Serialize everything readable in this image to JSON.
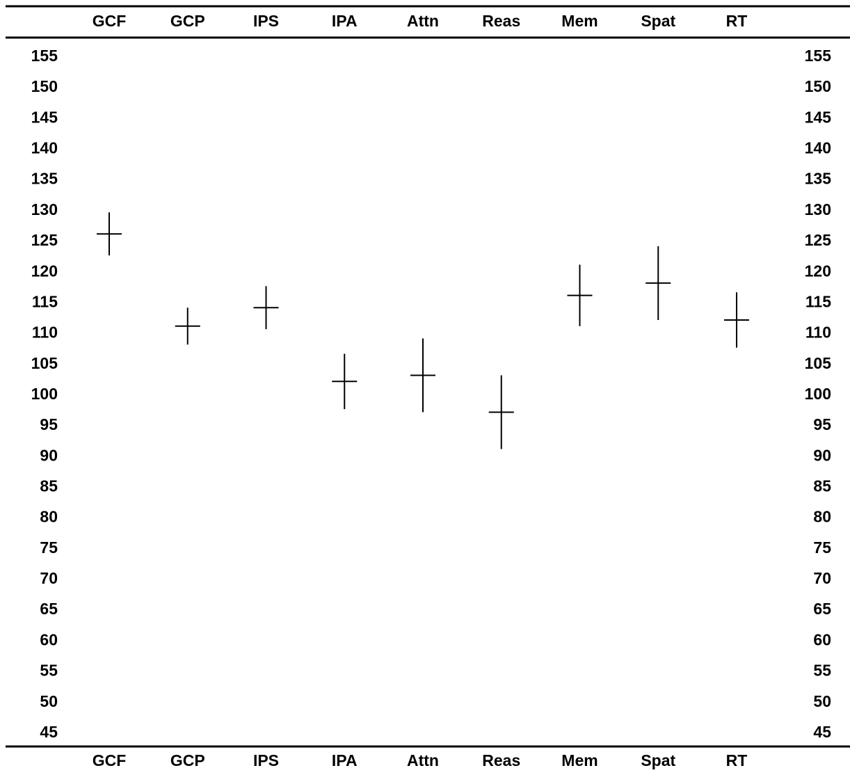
{
  "chart_data": {
    "type": "scatter",
    "title": "",
    "xlabel": "",
    "ylabel": "",
    "categories": [
      "GCF",
      "GCP",
      "IPS",
      "IPA",
      "Attn",
      "Reas",
      "Mem",
      "Spat",
      "RT"
    ],
    "series": [
      {
        "values": [
          126,
          111,
          114,
          102,
          103,
          97,
          116,
          118,
          112
        ],
        "lower": [
          122.5,
          108,
          110.5,
          97.5,
          97,
          91,
          111,
          112,
          107.5
        ],
        "upper": [
          129.5,
          114,
          117.5,
          106.5,
          109,
          103,
          121,
          124,
          116.5
        ]
      }
    ],
    "yticks": [
      "155",
      "150",
      "145",
      "140",
      "135",
      "130",
      "125",
      "120",
      "115",
      "110",
      "105",
      "100",
      "95",
      "90",
      "85",
      "80",
      "75",
      "70",
      "65",
      "60",
      "55",
      "50",
      "45"
    ],
    "ylim": [
      45,
      155
    ],
    "y_axis_both_sides": true,
    "category_labels_top_and_bottom": true,
    "grid": false,
    "colors": {
      "ink": "#000000",
      "background": "#ffffff"
    }
  }
}
